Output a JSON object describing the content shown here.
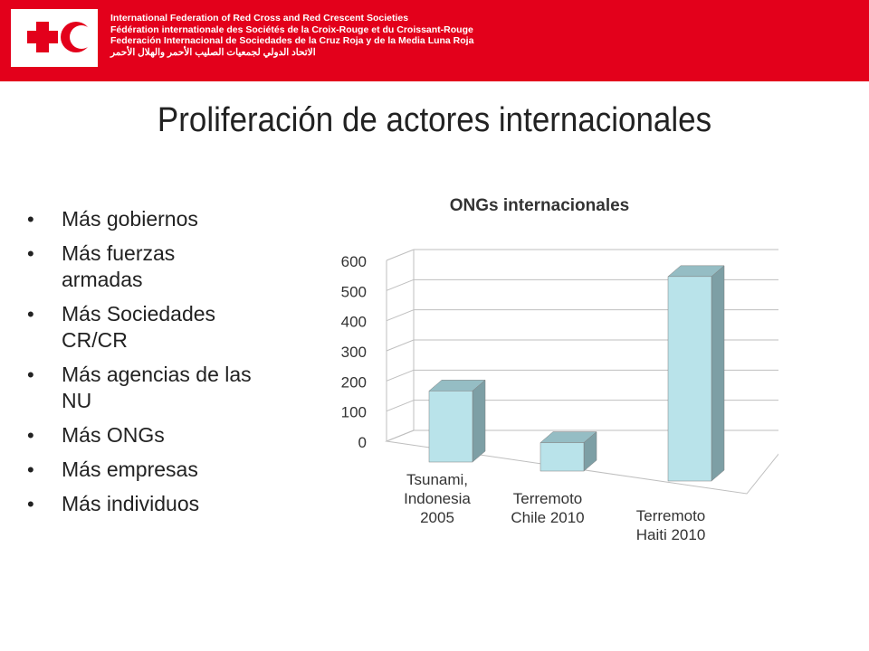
{
  "header": {
    "logo": {
      "icons": [
        "red-cross-icon",
        "red-crescent-icon"
      ],
      "color": "#e3001b"
    },
    "org_names": [
      "International Federation of Red Cross and Red Crescent Societies",
      "Fédération internationale des Sociétés de la Croix-Rouge et du Croissant-Rouge",
      "Federación Internacional de Sociedades de la Cruz Roja y de la Media Luna Roja",
      "الاتحاد الدولي لجمعيات الصليب الأحمر والهلال الأحمر"
    ],
    "background_color": "#e3001b"
  },
  "slide": {
    "title": "Proliferación de actores internacionales",
    "bullets": [
      "Más gobiernos",
      "Más fuerzas armadas",
      "Más Sociedades CR/CR",
      "Más agencias de las NU",
      "Más ONGs",
      "Más empresas",
      "Más individuos"
    ]
  },
  "chart_data": {
    "type": "bar",
    "style": "3d-column",
    "title": "ONGs internacionales",
    "categories": [
      [
        "Tsunami,",
        "Indonesia",
        "2005"
      ],
      [
        "Terremoto",
        "Chile 2010"
      ],
      [
        "Terremoto",
        "Haiti 2010"
      ]
    ],
    "values": [
      200,
      80,
      575
    ],
    "ylim": [
      0,
      600
    ],
    "yticks": [
      0,
      100,
      200,
      300,
      400,
      500,
      600
    ],
    "grid": true,
    "legend": "none",
    "colors": {
      "bar_front": "#b9e3ea",
      "bar_side": "#7d9fa5",
      "bar_top": "#95bdc4",
      "axis_text": "#333333"
    }
  }
}
